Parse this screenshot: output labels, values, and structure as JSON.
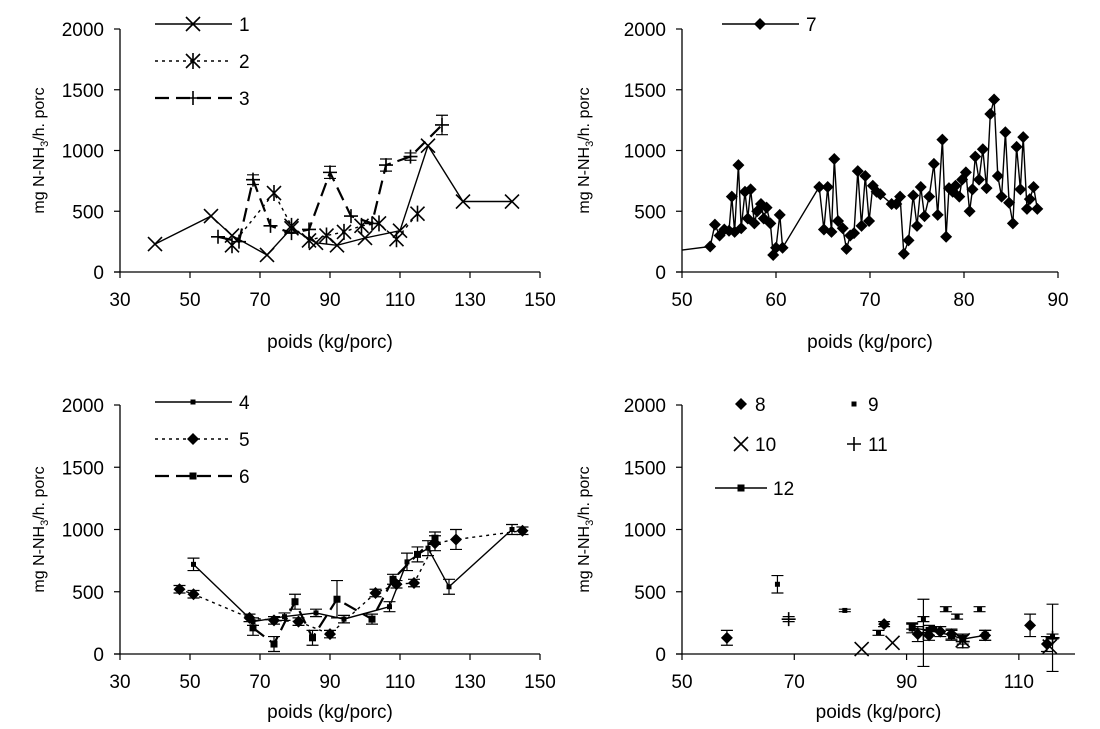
{
  "chart_data": [
    {
      "type": "line",
      "xlabel": "poids (kg/porc)",
      "ylabel_main": "mg N-NH",
      "ylabel_sub": "3",
      "ylabel_tail": "/h. porc",
      "xlim": [
        30,
        150
      ],
      "ylim": [
        0,
        2000
      ],
      "xticks": [
        30,
        50,
        70,
        90,
        110,
        130,
        150
      ],
      "yticks": [
        0,
        500,
        1000,
        1500,
        2000
      ],
      "x_axis_at_left": false,
      "legend_placement": "top-left",
      "series": [
        {
          "name": "1",
          "marker": "x",
          "dash": "solid",
          "err": false,
          "x": [
            40,
            56,
            62,
            72,
            79,
            86,
            92,
            100,
            110,
            118,
            128,
            142
          ],
          "y": [
            230,
            460,
            300,
            140,
            360,
            240,
            220,
            280,
            340,
            1040,
            580,
            580
          ]
        },
        {
          "name": "2",
          "marker": "asterisk",
          "dash": "dotted",
          "err": false,
          "x": [
            62,
            74,
            79,
            84,
            89,
            94,
            99,
            104,
            109,
            115
          ],
          "y": [
            220,
            650,
            380,
            260,
            300,
            330,
            380,
            400,
            270,
            480
          ]
        },
        {
          "name": "3",
          "marker": "plus",
          "dash": "dashed",
          "err": true,
          "x": [
            58,
            64,
            68,
            73,
            79,
            84,
            90,
            96,
            102,
            106,
            113,
            122
          ],
          "y": [
            290,
            250,
            760,
            380,
            320,
            350,
            820,
            460,
            400,
            880,
            950,
            1210
          ],
          "e": [
            0,
            0,
            40,
            0,
            0,
            0,
            50,
            0,
            0,
            50,
            30,
            80
          ]
        }
      ]
    },
    {
      "type": "line",
      "xlabel": "poids (kg/porc)",
      "ylabel_main": "mg N-NH",
      "ylabel_sub": "3",
      "ylabel_tail": "/h. porc",
      "xlim": [
        50,
        90
      ],
      "ylim": [
        0,
        2000
      ],
      "xticks": [
        50,
        60,
        70,
        80,
        90
      ],
      "yticks": [
        0,
        500,
        1000,
        1500,
        2000
      ],
      "x_axis_at_left": true,
      "legend_placement": "top-left",
      "series": [
        {
          "name": "7",
          "marker": "diamond",
          "dash": "solid",
          "err": false,
          "start": [
            50,
            180
          ],
          "x": [
            53,
            53.5,
            54,
            54.5,
            55,
            55.3,
            55.6,
            56,
            56.3,
            56.7,
            57,
            57.3,
            57.7,
            58,
            58.4,
            58.7,
            59,
            59.4,
            59.7,
            60,
            60.4,
            60.7,
            64.6,
            65.1,
            65.5,
            65.9,
            66.2,
            66.6,
            67.1,
            67.5,
            67.9,
            68.3,
            68.7,
            69.1,
            69.5,
            69.9,
            70.3,
            70.7,
            71.1,
            72.3,
            72.8,
            73.2,
            73.6,
            74.1,
            74.6,
            75,
            75.4,
            75.8,
            76.3,
            76.8,
            77.2,
            77.7,
            78.1,
            78.4,
            78.8,
            79.1,
            79.5,
            79.8,
            80.2,
            80.6,
            80.9,
            81.2,
            81.6,
            82,
            82.4,
            82.8,
            83.2,
            83.6,
            84,
            84.4,
            84.8,
            85.2,
            85.6,
            86,
            86.3,
            86.7,
            87,
            87.4,
            87.8
          ],
          "y": [
            210,
            390,
            300,
            350,
            340,
            620,
            330,
            880,
            360,
            660,
            440,
            680,
            400,
            500,
            560,
            440,
            530,
            400,
            140,
            200,
            470,
            200,
            700,
            350,
            700,
            330,
            930,
            420,
            360,
            190,
            300,
            320,
            830,
            380,
            790,
            420,
            710,
            660,
            640,
            560,
            560,
            620,
            150,
            260,
            630,
            380,
            700,
            460,
            620,
            890,
            470,
            1090,
            290,
            690,
            660,
            710,
            620,
            760,
            820,
            500,
            680,
            950,
            760,
            1010,
            690,
            1300,
            1420,
            790,
            620,
            1150,
            570,
            400,
            1030,
            680,
            1110,
            520,
            600,
            700,
            520
          ]
        }
      ]
    },
    {
      "type": "line",
      "xlabel": "poids (kg/porc)",
      "ylabel_main": "mg N-NH",
      "ylabel_sub": "3",
      "ylabel_tail": "/h. porc",
      "xlim": [
        30,
        150
      ],
      "ylim": [
        0,
        2000
      ],
      "xticks": [
        30,
        50,
        70,
        90,
        110,
        130,
        150
      ],
      "yticks": [
        0,
        500,
        1000,
        1500,
        2000
      ],
      "x_axis_at_left": false,
      "legend_placement": "top-left",
      "series": [
        {
          "name": "4",
          "marker": "dot",
          "dash": "solid",
          "err": true,
          "x": [
            51,
            68,
            77,
            86,
            94,
            107,
            112,
            118,
            124,
            142
          ],
          "y": [
            720,
            260,
            300,
            330,
            280,
            380,
            740,
            850,
            540,
            1000
          ],
          "e": [
            50,
            30,
            30,
            30,
            30,
            40,
            70,
            60,
            60,
            40
          ]
        },
        {
          "name": "5",
          "marker": "diamond",
          "dash": "dotted",
          "err": true,
          "x": [
            47,
            51,
            67,
            74,
            81,
            90,
            103,
            109,
            114,
            120,
            126,
            145
          ],
          "y": [
            520,
            480,
            290,
            270,
            260,
            160,
            490,
            560,
            570,
            890,
            920,
            990
          ],
          "e": [
            30,
            30,
            30,
            30,
            30,
            30,
            30,
            30,
            30,
            60,
            80,
            30
          ]
        },
        {
          "name": "6",
          "marker": "square",
          "dash": "dashed",
          "err": true,
          "x": [
            68,
            74,
            80,
            85,
            92,
            102,
            108,
            115,
            120
          ],
          "y": [
            210,
            80,
            420,
            130,
            440,
            280,
            600,
            800,
            930
          ],
          "e": [
            60,
            60,
            60,
            60,
            150,
            40,
            40,
            60,
            50
          ]
        }
      ]
    },
    {
      "type": "scatter",
      "xlabel": "poids (kg/porc)",
      "ylabel_main": "mg N-NH",
      "ylabel_sub": "3",
      "ylabel_tail": "/h. porc",
      "xlim": [
        50,
        120
      ],
      "ylim": [
        0,
        2000
      ],
      "xticks": [
        50,
        70,
        90,
        110
      ],
      "yticks": [
        0,
        500,
        1000,
        1500,
        2000
      ],
      "x_axis_at_left": false,
      "legend_placement": "top",
      "series": [
        {
          "name": "8",
          "marker": "diamond",
          "dash": "none",
          "err": true,
          "x": [
            58,
            86,
            92,
            94,
            96,
            98,
            104,
            112,
            115
          ],
          "y": [
            130,
            240,
            160,
            150,
            180,
            160,
            150,
            230,
            80
          ],
          "e": [
            60,
            20,
            60,
            40,
            40,
            40,
            40,
            90,
            60
          ]
        },
        {
          "name": "9",
          "marker": "dot",
          "dash": "none",
          "err": true,
          "x": [
            67,
            79,
            85,
            91,
            93,
            95,
            97,
            99,
            103,
            116
          ],
          "y": [
            560,
            350,
            170,
            220,
            280,
            200,
            360,
            300,
            360,
            140
          ],
          "e": [
            70,
            10,
            20,
            20,
            20,
            20,
            20,
            20,
            20,
            20
          ]
        },
        {
          "name": "10",
          "marker": "x",
          "dash": "none",
          "err": false,
          "x": [
            82,
            87.5,
            100,
            115.5
          ],
          "y": [
            40,
            90,
            110,
            60
          ]
        },
        {
          "name": "11",
          "marker": "plus",
          "dash": "none",
          "err": true,
          "x": [
            69,
            93,
            100,
            116
          ],
          "y": [
            280,
            170,
            100,
            130
          ],
          "e": [
            20,
            270,
            50,
            270
          ]
        },
        {
          "name": "12",
          "marker": "square",
          "dash": "solid",
          "err": true,
          "x": [
            91,
            94,
            98,
            100,
            104
          ],
          "y": [
            210,
            190,
            150,
            120,
            150
          ],
          "e": [
            40,
            40,
            40,
            40,
            40
          ]
        }
      ]
    }
  ]
}
